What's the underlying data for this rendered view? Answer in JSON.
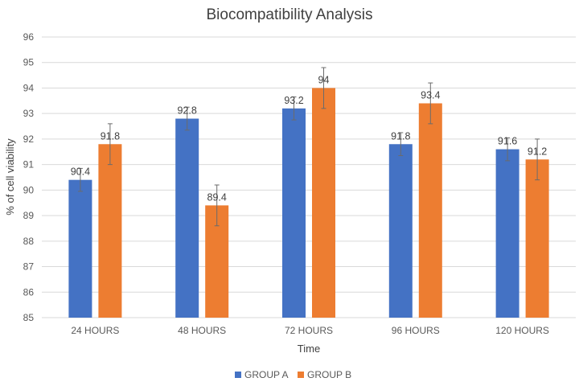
{
  "chart_data": {
    "type": "bar",
    "title": "Biocompatibility Analysis",
    "xlabel": "Time",
    "ylabel": "% of cell viability",
    "categories": [
      "24 HOURS",
      "48 HOURS",
      "72 HOURS",
      "96 HOURS",
      "120 HOURS"
    ],
    "series": [
      {
        "name": "GROUP A",
        "color": "#4472C4",
        "values": [
          90.4,
          92.8,
          93.2,
          91.8,
          91.6
        ],
        "error": [
          0.45,
          0.45,
          0.45,
          0.45,
          0.45
        ]
      },
      {
        "name": "GROUP B",
        "color": "#ED7D31",
        "values": [
          91.8,
          89.4,
          94,
          93.4,
          91.2
        ],
        "error": [
          0.8,
          0.8,
          0.8,
          0.8,
          0.8
        ]
      }
    ],
    "ylim": [
      85,
      96
    ],
    "yticks": [
      85,
      86,
      87,
      88,
      89,
      90,
      91,
      92,
      93,
      94,
      95,
      96
    ],
    "grid": true,
    "data_labels": true,
    "legend": "bottom"
  }
}
